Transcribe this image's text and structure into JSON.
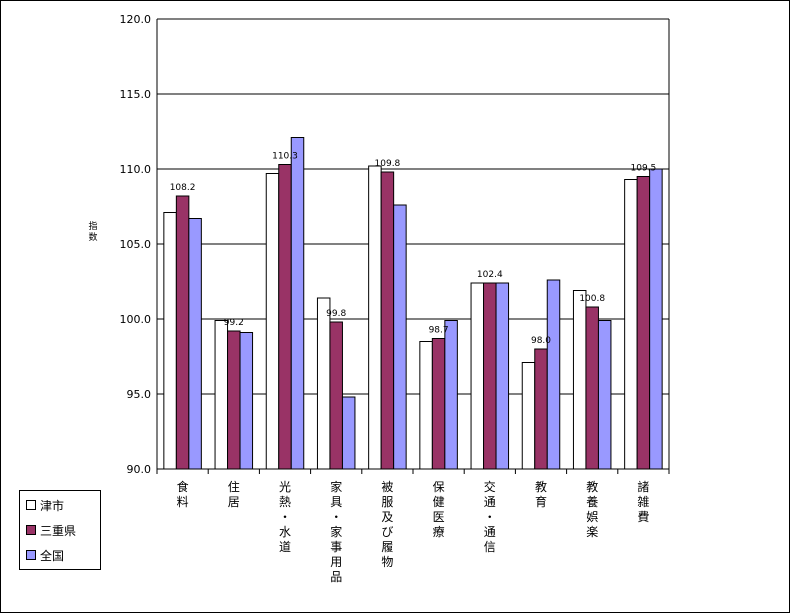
{
  "chart_data": {
    "type": "bar",
    "ylabel": "指数",
    "ylim": [
      90.0,
      120.0
    ],
    "yticks": [
      "90.0",
      "95.0",
      "100.0",
      "105.0",
      "110.0",
      "115.0",
      "120.0"
    ],
    "categories": [
      "食料",
      "住居",
      "光熱・水道",
      "家具・家事用品",
      "被服及び履物",
      "保健医療",
      "交通・通信",
      "教育",
      "教養娯楽",
      "諸雑費"
    ],
    "series": [
      {
        "name": "津市",
        "color": "#ffffff",
        "values": [
          107.1,
          99.9,
          109.7,
          101.4,
          110.2,
          98.5,
          102.4,
          97.1,
          101.9,
          109.3
        ]
      },
      {
        "name": "三重県",
        "color": "#993366",
        "values": [
          108.2,
          99.2,
          110.3,
          99.8,
          109.8,
          98.7,
          102.4,
          98.0,
          100.8,
          109.5
        ]
      },
      {
        "name": "全国",
        "color": "#9999ff",
        "values": [
          106.7,
          99.1,
          112.1,
          94.8,
          107.6,
          99.9,
          102.4,
          102.6,
          99.9,
          110.0
        ]
      }
    ],
    "data_labels": [
      "108.2",
      "99.2",
      "110.3",
      "99.8",
      "109.8",
      "98.7",
      "102.4",
      "98.0",
      "100.8",
      "109.5"
    ],
    "grid": true,
    "legend_position": "bottom-left"
  },
  "legend": {
    "items": [
      {
        "label": "津市",
        "color": "#ffffff"
      },
      {
        "label": "三重県",
        "color": "#993366"
      },
      {
        "label": "全国",
        "color": "#9999ff"
      }
    ]
  },
  "axis": {
    "ylabel_chars": [
      "指",
      "数"
    ]
  }
}
